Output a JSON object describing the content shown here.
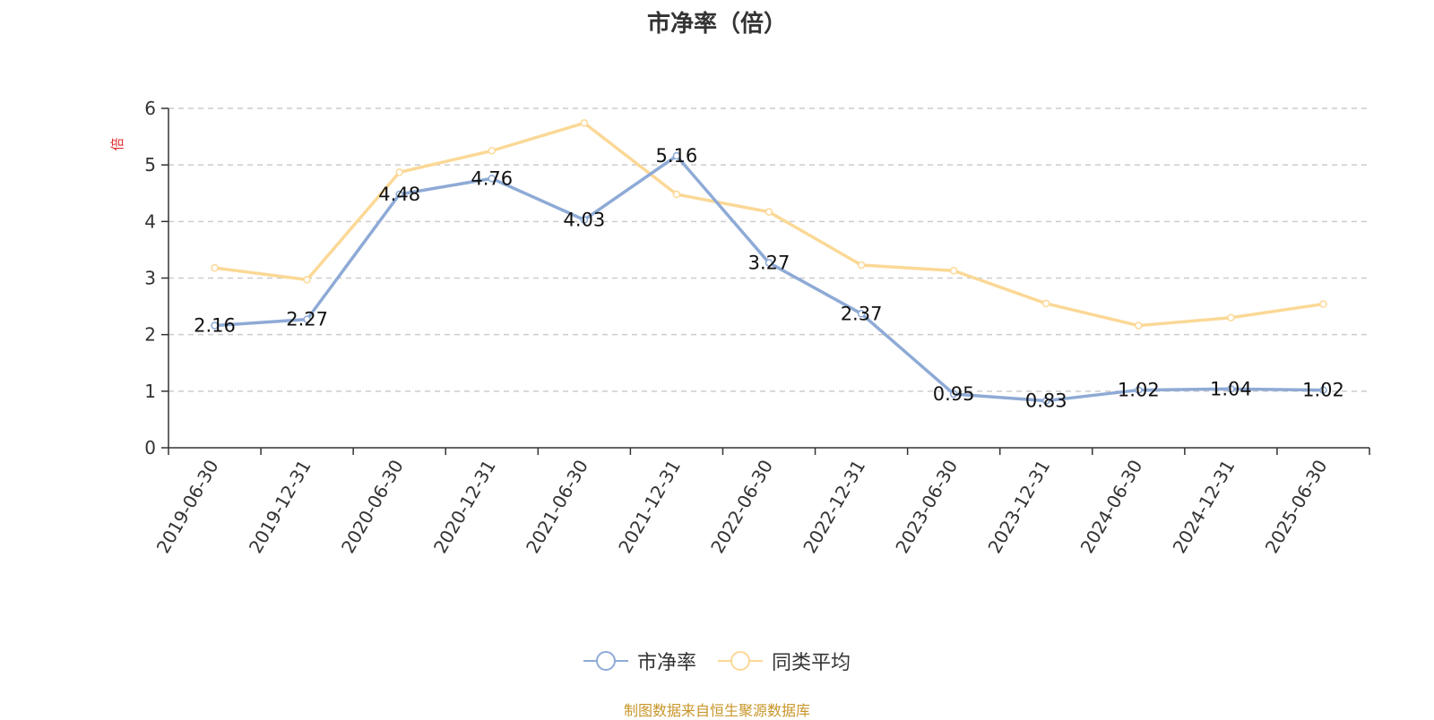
{
  "title": "市净率（倍）",
  "source_note": "制图数据来自恒生聚源数据库",
  "chart_data": {
    "type": "line",
    "title": "市净率（倍）",
    "ylabel": "倍",
    "ylim": [
      0,
      6
    ],
    "yticks": [
      "0",
      "1",
      "2",
      "3",
      "4",
      "5",
      "6"
    ],
    "grid": true,
    "legend_position": "bottom-center",
    "categories": [
      "2019-06-30",
      "2019-12-31",
      "2020-06-30",
      "2020-12-31",
      "2021-06-30",
      "2021-12-31",
      "2022-06-30",
      "2022-12-31",
      "2023-06-30",
      "2023-12-31",
      "2024-06-30",
      "2024-12-31",
      "2025-06-30"
    ],
    "series": [
      {
        "name": "市净率",
        "color": "#8eaad6",
        "values": [
          2.16,
          2.27,
          4.48,
          4.76,
          4.03,
          5.16,
          3.27,
          2.37,
          0.95,
          0.83,
          1.02,
          1.04,
          1.02
        ],
        "labels": [
          "2.16",
          "2.27",
          "4.48",
          "4.76",
          "4.03",
          "5.16",
          "3.27",
          "2.37",
          "0.95",
          "0.83",
          "1.02",
          "1.04",
          "1.02"
        ]
      },
      {
        "name": "同类平均",
        "color": "#fbd896",
        "values": [
          3.18,
          2.97,
          4.87,
          5.25,
          5.74,
          4.48,
          4.17,
          3.23,
          3.13,
          2.55,
          2.16,
          2.3,
          2.54
        ]
      }
    ]
  }
}
